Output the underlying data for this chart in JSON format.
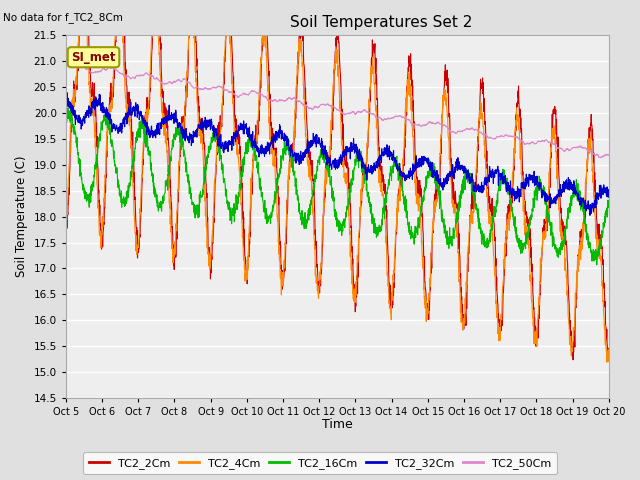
{
  "title": "Soil Temperatures Set 2",
  "xlabel": "Time",
  "ylabel": "Soil Temperature (C)",
  "top_left_note": "No data for f_TC2_8Cm",
  "annotation_box": "SI_met",
  "ylim": [
    14.5,
    21.5
  ],
  "yticks": [
    14.5,
    15.0,
    15.5,
    16.0,
    16.5,
    17.0,
    17.5,
    18.0,
    18.5,
    19.0,
    19.5,
    20.0,
    20.5,
    21.0,
    21.5
  ],
  "xtick_labels": [
    "Oct 5",
    "Oct 6",
    "Oct 7",
    "Oct 8",
    "Oct 9",
    "Oct 10",
    "Oct 11",
    "Oct 12",
    "Oct 13",
    "Oct 14",
    "Oct 15",
    "Oct 16",
    "Oct 17",
    "Oct 18",
    "Oct 19",
    "Oct 20"
  ],
  "series": {
    "TC2_2Cm": {
      "color": "#cc0000",
      "linewidth": 0.8
    },
    "TC2_4Cm": {
      "color": "#ff8800",
      "linewidth": 0.8
    },
    "TC2_16Cm": {
      "color": "#00bb00",
      "linewidth": 0.8
    },
    "TC2_32Cm": {
      "color": "#0000cc",
      "linewidth": 0.8
    },
    "TC2_50Cm": {
      "color": "#dd88cc",
      "linewidth": 0.8
    }
  },
  "bg_color": "#e0e0e0",
  "plot_bg_color": "#eeeeee",
  "grid_color": "#ffffff",
  "n_days": 15,
  "samples_per_day": 144
}
